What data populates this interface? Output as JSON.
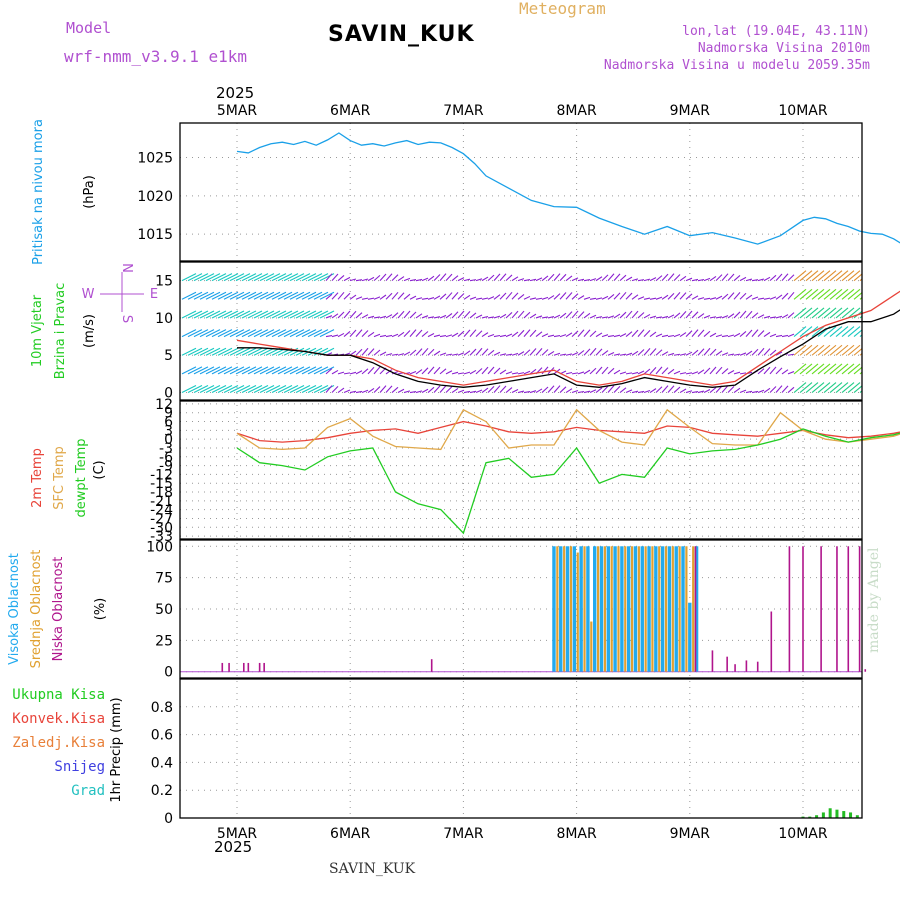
{
  "header": {
    "model_label": "Model",
    "model_name": "wrf-nmm_v3.9.1 e1km",
    "title": "SAVIN_KUK",
    "meteogram": "Meteogram",
    "lonlat": "lon,lat (19.04E, 43.11N)",
    "alt_real": "Nadmorska Visina 2010m",
    "alt_model": "Nadmorska Visina u modelu 2059.35m",
    "year_top": "2025",
    "year_bottom": "2025",
    "footer": "SAVIN_KUK",
    "credit": "made by Angel"
  },
  "dates": [
    "5MAR",
    "6MAR",
    "7MAR",
    "8MAR",
    "9MAR",
    "10MAR"
  ],
  "colors": {
    "pressure": "#1aa0e8",
    "temp2m": "#e8443a",
    "sfc": "#e0a84a",
    "dewpt": "#22cc22",
    "high_cloud": "#22aaee",
    "mid_cloud": "#e0a030",
    "low_cloud": "#b0158c",
    "precip": "#22bb22",
    "purple": "#b050d0"
  },
  "chart_data": [
    {
      "type": "line",
      "panel": "pressure",
      "ylabel_1": "Pritisak na nivou mora",
      "ylabel_2": "(hPa)",
      "ylim": [
        1011.5,
        1029.5
      ],
      "yticks": [
        1015,
        1020,
        1025
      ],
      "x_days": [
        0,
        0.1,
        0.2,
        0.3,
        0.4,
        0.5,
        0.6,
        0.7,
        0.8,
        0.9,
        1.0,
        1.1,
        1.2,
        1.3,
        1.4,
        1.5,
        1.6,
        1.7,
        1.8,
        1.9,
        2.0,
        2.1,
        2.2,
        2.4,
        2.6,
        2.8,
        3.0,
        3.2,
        3.4,
        3.6,
        3.8,
        4.0,
        4.2,
        4.4,
        4.6,
        4.8,
        5.0,
        5.1,
        5.2,
        5.3,
        5.4,
        5.5,
        5.6,
        5.7,
        5.8,
        5.9,
        6.0
      ],
      "values": [
        1025.8,
        1025.6,
        1026.3,
        1026.8,
        1027.0,
        1026.7,
        1027.1,
        1026.6,
        1027.3,
        1028.2,
        1027.2,
        1026.6,
        1026.8,
        1026.5,
        1026.9,
        1027.2,
        1026.7,
        1027.0,
        1026.9,
        1026.3,
        1025.5,
        1024.2,
        1022.6,
        1021.0,
        1019.4,
        1018.6,
        1018.5,
        1017.1,
        1016.0,
        1015.0,
        1016.0,
        1014.8,
        1015.2,
        1014.5,
        1013.7,
        1014.8,
        1016.8,
        1017.2,
        1017.0,
        1016.4,
        1016.0,
        1015.4,
        1015.1,
        1015.0,
        1014.4,
        1013.5,
        1012.2
      ]
    },
    {
      "type": "line",
      "panel": "wind",
      "ylabel_1": "10m Vjetar",
      "ylabel_2": "Brzina i Pravac",
      "ylabel_3": "(m/s)",
      "compass_n": "N",
      "compass_s": "S",
      "compass_e": "E",
      "compass_w": "W",
      "ylim": [
        -1,
        17.5
      ],
      "yticks": [
        0,
        5,
        10,
        15
      ],
      "barb_rows": [
        0,
        2.5,
        5,
        7.5,
        10,
        12.5,
        15,
        17.5
      ],
      "x_days": [
        0,
        0.2,
        0.4,
        0.6,
        0.8,
        1.0,
        1.2,
        1.4,
        1.6,
        1.8,
        2.0,
        2.2,
        2.4,
        2.6,
        2.8,
        3.0,
        3.2,
        3.4,
        3.6,
        3.8,
        4.0,
        4.2,
        4.4,
        4.6,
        4.8,
        5.0,
        5.2,
        5.4,
        5.6,
        5.8,
        6.0
      ],
      "series": [
        {
          "values": [
            7,
            6.5,
            6.0,
            5.5,
            5.0,
            5.0,
            4.5,
            3.0,
            2.0,
            1.5,
            1.0,
            1.5,
            2.0,
            2.5,
            3.0,
            1.5,
            1.0,
            1.5,
            2.5,
            2.0,
            1.5,
            1.0,
            1.5,
            3.5,
            5.5,
            7.5,
            9.0,
            10.0,
            11.0,
            13.0,
            15.0
          ]
        },
        {
          "values": [
            6,
            6.0,
            5.8,
            5.5,
            5.0,
            5.0,
            4.0,
            2.5,
            1.5,
            1.0,
            0.7,
            1.0,
            1.5,
            2.0,
            2.5,
            1.0,
            0.7,
            1.2,
            2.0,
            1.5,
            1.0,
            0.7,
            1.0,
            3.0,
            4.8,
            6.5,
            8.5,
            9.5,
            9.5,
            10.5,
            12.5
          ]
        }
      ]
    },
    {
      "type": "line",
      "panel": "temperature",
      "ylabel_1": "2m Temp",
      "ylabel_2": "SFC Temp",
      "ylabel_3": "dewpt Temp",
      "ylabel_4": "(C)",
      "ylim": [
        -34,
        13
      ],
      "yticks": [
        12,
        9,
        6,
        3,
        0,
        -3,
        -6,
        -9,
        -12,
        -15,
        -18,
        -21,
        -24,
        -27,
        -30,
        -33
      ],
      "x_days": [
        0,
        0.2,
        0.4,
        0.6,
        0.8,
        1.0,
        1.2,
        1.4,
        1.6,
        1.8,
        2.0,
        2.2,
        2.4,
        2.6,
        2.8,
        3.0,
        3.2,
        3.4,
        3.6,
        3.8,
        4.0,
        4.2,
        4.4,
        4.6,
        4.8,
        5.0,
        5.2,
        5.4,
        5.6,
        5.8,
        6.0
      ],
      "series": [
        {
          "values": [
            2,
            -0.5,
            -1.0,
            -0.5,
            0.5,
            2.0,
            3.0,
            3.5,
            2.0,
            4.0,
            6.0,
            4.5,
            2.5,
            2.0,
            2.5,
            4.0,
            3.0,
            2.5,
            2.0,
            4.5,
            4.0,
            2.0,
            1.5,
            1.0,
            2.0,
            3.0,
            1.5,
            0.5,
            1.0,
            2.0,
            3.5
          ]
        },
        {
          "values": [
            2,
            -3.0,
            -3.5,
            -3.0,
            4.0,
            7.0,
            1.0,
            -2.5,
            -3.0,
            -3.5,
            10.0,
            6.0,
            -3.0,
            -2.0,
            -2.0,
            10.0,
            3.0,
            -1.0,
            -2.0,
            10.0,
            4.0,
            -1.5,
            -2.0,
            -2.0,
            9.0,
            3.0,
            0.0,
            -1.0,
            0.0,
            1.0,
            3.5
          ]
        },
        {
          "values": [
            -3,
            -8.0,
            -9.0,
            -10.5,
            -6.0,
            -4.0,
            -3.0,
            -18.0,
            -22.0,
            -24.0,
            -32.0,
            -8.0,
            -6.5,
            -13.0,
            -12.0,
            -3.0,
            -15.0,
            -12.0,
            -13.0,
            -3.0,
            -5.0,
            -4.0,
            -3.5,
            -2.0,
            0.0,
            3.5,
            1.0,
            -1.0,
            0.5,
            1.5,
            3.5
          ]
        }
      ]
    },
    {
      "type": "bar",
      "panel": "cloud",
      "ylabel_1": "Visoka Oblacnost",
      "ylabel_2": "Srednja Oblacnost",
      "ylabel_3": "Niska Oblacnost",
      "ylabel_4": "(%)",
      "ylim": [
        -5,
        105
      ],
      "yticks": [
        0,
        25,
        50,
        75,
        100
      ],
      "high_x_days": [
        2.8,
        2.86,
        2.92,
        2.98,
        3.04,
        3.1,
        3.16,
        3.22,
        3.28,
        3.34,
        3.4,
        3.46,
        3.52,
        3.58,
        3.64,
        3.7,
        3.76,
        3.82,
        3.88,
        3.94,
        4.0,
        4.06
      ],
      "high_values": [
        100,
        100,
        100,
        100,
        100,
        100,
        100,
        100,
        100,
        100,
        100,
        100,
        100,
        100,
        100,
        100,
        100,
        100,
        100,
        100,
        55,
        100
      ],
      "mid_x_days": [
        2.83,
        2.89,
        2.95,
        3.01,
        3.07,
        3.13,
        3.19,
        3.25,
        3.31,
        3.37,
        3.43,
        3.49,
        3.55,
        3.61,
        3.67,
        3.73,
        3.79,
        3.85,
        3.91,
        3.97,
        4.03
      ],
      "mid_values": [
        100,
        100,
        100,
        95,
        100,
        40,
        100,
        100,
        100,
        100,
        100,
        100,
        100,
        100,
        100,
        100,
        100,
        100,
        100,
        100,
        100
      ],
      "low_x_days": [
        -0.13,
        -0.07,
        0.06,
        0.1,
        0.2,
        0.24,
        1.72,
        4.05,
        4.2,
        4.33,
        4.4,
        4.5,
        4.6,
        4.72,
        4.88,
        5.0,
        5.16,
        5.3,
        5.4,
        5.5,
        5.55
      ],
      "low_values": [
        7,
        7,
        7,
        7,
        7,
        7,
        10,
        100,
        17,
        12,
        6,
        9,
        8,
        48,
        100,
        100,
        100,
        100,
        100,
        100,
        2
      ]
    },
    {
      "type": "bar",
      "panel": "precip",
      "ylabel": "1hr Precip (mm)",
      "ylim": [
        0,
        1.0
      ],
      "yticks": [
        0.0,
        0.2,
        0.4,
        0.6,
        0.8
      ],
      "legend": [
        "Ukupna Kisa",
        "Konvek.Kisa",
        "Zaledj.Kisa",
        "Snijeg",
        "Grad"
      ],
      "x_days": [
        5.0,
        5.06,
        5.12,
        5.18,
        5.24,
        5.3,
        5.36,
        5.42,
        5.48
      ],
      "values": [
        0.01,
        0.01,
        0.02,
        0.04,
        0.07,
        0.06,
        0.05,
        0.04,
        0.02
      ]
    }
  ]
}
